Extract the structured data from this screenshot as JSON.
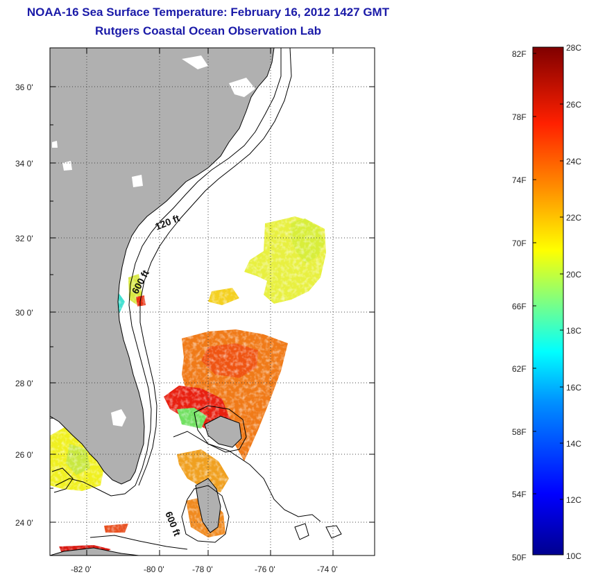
{
  "header": {
    "title": "NOAA-16 Sea Surface Temperature:  February 16, 2012 1427 GMT",
    "subtitle": "Rutgers Coastal Ocean Observation Lab"
  },
  "map": {
    "lat_labels": [
      "36 0'",
      "34 0'",
      "32 0'",
      "30 0'",
      "28 0'",
      "26 0'",
      "24 0'"
    ],
    "lon_labels": [
      "-82 0'",
      "-80 0'",
      "-78 0'",
      "-76 0'",
      "-74 0'"
    ],
    "contour_labels": {
      "shelf_120": "120 ft",
      "shelf_600_north": "600 ft",
      "shelf_600_south": "600 ft"
    },
    "colors": {
      "land": "#b0b0b0",
      "water": "#ffffff",
      "coastline": "#000000",
      "grid": "#555555"
    }
  },
  "colorbar": {
    "fahrenheit_labels": [
      "82F",
      "78F",
      "74F",
      "70F",
      "66F",
      "62F",
      "58F",
      "54F",
      "50F"
    ],
    "celsius_labels": [
      "28C",
      "26C",
      "24C",
      "22C",
      "20C",
      "18C",
      "16C",
      "14C",
      "12C",
      "10C"
    ],
    "colormap": "jet",
    "range_celsius": [
      10,
      28
    ]
  }
}
